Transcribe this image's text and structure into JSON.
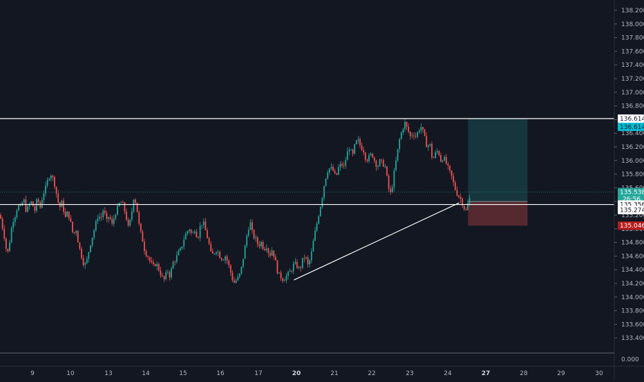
{
  "chart_data": {
    "type": "candlestick",
    "title": "",
    "ylim": [
      133.2,
      138.3
    ],
    "y_ticks": [
      133.4,
      133.6,
      133.8,
      134.0,
      134.2,
      134.4,
      134.6,
      134.8,
      135.0,
      135.2,
      135.4,
      135.6,
      135.8,
      136.0,
      136.2,
      136.4,
      136.6,
      136.8,
      137.0,
      137.2,
      137.4,
      137.6,
      137.8,
      138.0,
      138.2
    ],
    "x_ticks": [
      "9",
      "10",
      "13",
      "14",
      "15",
      "16",
      "17",
      "20",
      "21",
      "22",
      "23",
      "24",
      "27",
      "28",
      "29",
      "30"
    ],
    "x_ticks_bold": [
      "20",
      "27"
    ],
    "volume_pane": {
      "tick_label": "0.000"
    },
    "colors": {
      "background": "#131722",
      "up": "#26a69a",
      "down": "#ef5350",
      "line": "#ffffff",
      "grid_text": "#b2b5be"
    },
    "horizontal_levels": [
      {
        "value": 136.614,
        "label": "136.614",
        "label_style": "cyan"
      },
      {
        "value": 135.356,
        "label": "135.356",
        "label_style": "white"
      }
    ],
    "price_labels": [
      {
        "value": 135.538,
        "label": "135.538",
        "sub_label": "26:56",
        "label_style": "green"
      },
      {
        "value": 135.274,
        "label": "135.274",
        "label_style": "white"
      },
      {
        "value": 135.046,
        "label": "135.046",
        "label_style": "red"
      }
    ],
    "trendline": {
      "from": {
        "x": "19.8",
        "y": 134.25
      },
      "to": {
        "x": "24.9",
        "y": 135.38
      }
    },
    "position": {
      "type": "long",
      "entry": 135.4,
      "target": 136.614,
      "stop": 135.046,
      "from_x": "25.6",
      "to_x": "28.1"
    },
    "ohlc_path": [
      [
        0,
        135.2
      ],
      [
        3,
        135.05
      ],
      [
        6,
        134.9
      ],
      [
        9,
        134.7
      ],
      [
        12,
        134.65
      ],
      [
        15,
        134.9
      ],
      [
        18,
        135.1
      ],
      [
        22,
        135.2
      ],
      [
        26,
        135.35
      ],
      [
        30,
        135.3
      ],
      [
        34,
        135.45
      ],
      [
        38,
        135.25
      ],
      [
        42,
        135.35
      ],
      [
        46,
        135.4
      ],
      [
        50,
        135.25
      ],
      [
        54,
        135.45
      ],
      [
        58,
        135.3
      ],
      [
        62,
        135.5
      ],
      [
        66,
        135.6
      ],
      [
        70,
        135.75
      ],
      [
        74,
        135.8
      ],
      [
        78,
        135.7
      ],
      [
        82,
        135.5
      ],
      [
        86,
        135.3
      ],
      [
        90,
        135.4
      ],
      [
        94,
        135.15
      ],
      [
        98,
        135.25
      ],
      [
        102,
        135.1
      ],
      [
        106,
        134.9
      ],
      [
        110,
        135.0
      ],
      [
        114,
        134.75
      ],
      [
        118,
        134.6
      ],
      [
        122,
        134.45
      ],
      [
        126,
        134.55
      ],
      [
        130,
        134.75
      ],
      [
        134,
        134.9
      ],
      [
        138,
        135.05
      ],
      [
        142,
        135.2
      ],
      [
        146,
        135.15
      ],
      [
        150,
        135.3
      ],
      [
        154,
        135.1
      ],
      [
        158,
        135.2
      ],
      [
        162,
        135.05
      ],
      [
        166,
        135.2
      ],
      [
        170,
        135.3
      ],
      [
        174,
        135.4
      ],
      [
        178,
        135.35
      ],
      [
        182,
        135.2
      ],
      [
        186,
        135.0
      ],
      [
        190,
        135.2
      ],
      [
        194,
        135.5
      ],
      [
        198,
        135.3
      ],
      [
        202,
        135.0
      ],
      [
        206,
        134.85
      ],
      [
        210,
        134.65
      ],
      [
        214,
        134.6
      ],
      [
        218,
        134.5
      ],
      [
        222,
        134.45
      ],
      [
        226,
        134.5
      ],
      [
        230,
        134.4
      ],
      [
        234,
        134.3
      ],
      [
        238,
        134.25
      ],
      [
        242,
        134.4
      ],
      [
        246,
        134.3
      ],
      [
        250,
        134.5
      ],
      [
        254,
        134.55
      ],
      [
        258,
        134.65
      ],
      [
        262,
        134.7
      ],
      [
        266,
        134.85
      ],
      [
        270,
        134.95
      ],
      [
        274,
        135.0
      ],
      [
        278,
        134.9
      ],
      [
        282,
        135.0
      ],
      [
        286,
        134.85
      ],
      [
        290,
        135.05
      ],
      [
        294,
        135.1
      ],
      [
        298,
        134.95
      ],
      [
        302,
        134.8
      ],
      [
        306,
        134.6
      ],
      [
        310,
        134.65
      ],
      [
        314,
        134.7
      ],
      [
        318,
        134.6
      ],
      [
        322,
        134.55
      ],
      [
        326,
        134.6
      ],
      [
        330,
        134.5
      ],
      [
        334,
        134.35
      ],
      [
        338,
        134.2
      ],
      [
        342,
        134.25
      ],
      [
        346,
        134.3
      ],
      [
        350,
        134.45
      ],
      [
        354,
        134.7
      ],
      [
        358,
        134.95
      ],
      [
        362,
        135.1
      ],
      [
        366,
        134.9
      ],
      [
        370,
        134.85
      ],
      [
        374,
        134.75
      ],
      [
        378,
        134.8
      ],
      [
        382,
        134.7
      ],
      [
        386,
        134.75
      ],
      [
        390,
        134.6
      ],
      [
        394,
        134.7
      ],
      [
        398,
        134.55
      ],
      [
        402,
        134.35
      ],
      [
        406,
        134.3
      ],
      [
        410,
        134.25
      ],
      [
        414,
        134.3
      ],
      [
        418,
        134.35
      ],
      [
        422,
        134.4
      ],
      [
        426,
        134.5
      ],
      [
        430,
        134.45
      ],
      [
        434,
        134.4
      ],
      [
        438,
        134.55
      ],
      [
        442,
        134.6
      ],
      [
        446,
        134.45
      ],
      [
        450,
        134.6
      ],
      [
        454,
        134.85
      ],
      [
        458,
        135.05
      ],
      [
        462,
        135.25
      ],
      [
        466,
        135.45
      ],
      [
        470,
        135.7
      ],
      [
        474,
        135.85
      ],
      [
        478,
        135.9
      ],
      [
        482,
        135.85
      ],
      [
        486,
        135.75
      ],
      [
        490,
        135.9
      ],
      [
        494,
        135.95
      ],
      [
        498,
        135.9
      ],
      [
        502,
        136.1
      ],
      [
        506,
        136.2
      ],
      [
        510,
        136.05
      ],
      [
        514,
        136.25
      ],
      [
        518,
        136.3
      ],
      [
        522,
        136.2
      ],
      [
        526,
        136.15
      ],
      [
        530,
        136.0
      ],
      [
        534,
        136.05
      ],
      [
        538,
        136.1
      ],
      [
        542,
        136.0
      ],
      [
        546,
        135.9
      ],
      [
        550,
        136.0
      ],
      [
        554,
        135.95
      ],
      [
        558,
        135.9
      ],
      [
        562,
        135.6
      ],
      [
        566,
        135.5
      ],
      [
        570,
        135.8
      ],
      [
        574,
        136.05
      ],
      [
        578,
        136.3
      ],
      [
        582,
        136.45
      ],
      [
        586,
        136.55
      ],
      [
        590,
        136.45
      ],
      [
        594,
        136.35
      ],
      [
        598,
        136.4
      ],
      [
        602,
        136.35
      ],
      [
        606,
        136.45
      ],
      [
        610,
        136.5
      ],
      [
        614,
        136.35
      ],
      [
        618,
        136.2
      ],
      [
        622,
        136.25
      ],
      [
        626,
        136.0
      ],
      [
        630,
        136.1
      ],
      [
        634,
        136.15
      ],
      [
        638,
        136.0
      ],
      [
        642,
        136.05
      ],
      [
        646,
        135.95
      ],
      [
        650,
        135.85
      ],
      [
        654,
        135.75
      ],
      [
        658,
        135.6
      ],
      [
        662,
        135.5
      ],
      [
        666,
        135.45
      ],
      [
        670,
        135.35
      ],
      [
        674,
        135.25
      ],
      [
        678,
        135.4
      ],
      [
        682,
        135.5
      ]
    ]
  }
}
